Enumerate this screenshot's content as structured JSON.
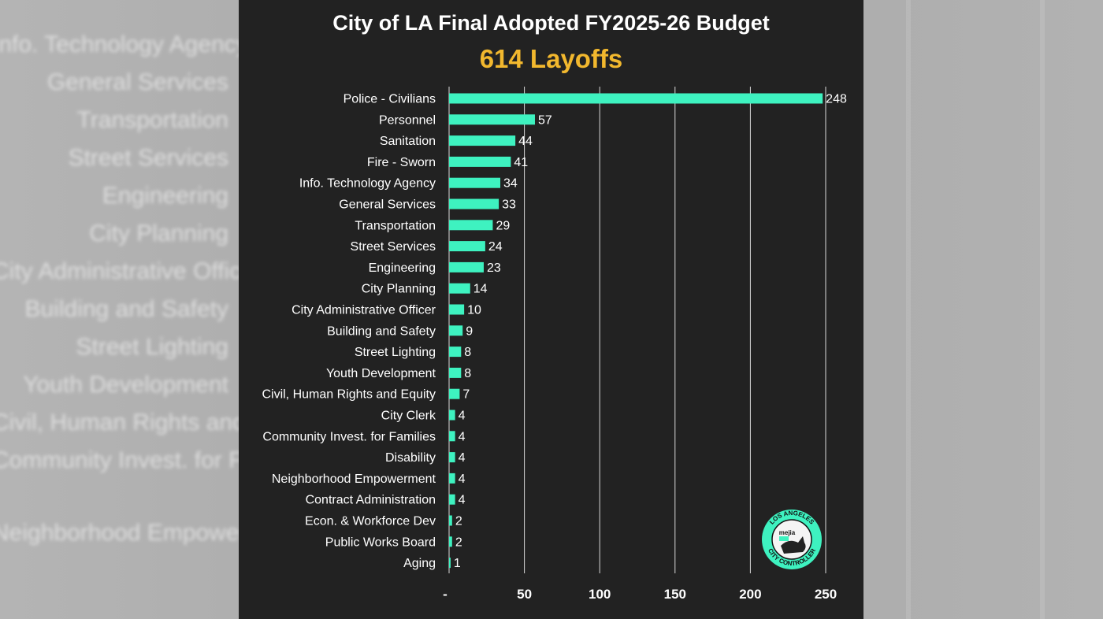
{
  "chart_data": {
    "type": "bar",
    "orientation": "horizontal",
    "title": "City of LA Final Adopted FY2025-26 Budget",
    "subtitle": "614 Layoffs",
    "categories": [
      "Police - Civilians",
      "Personnel",
      "Sanitation",
      "Fire - Sworn",
      "Info. Technology Agency",
      "General Services",
      "Transportation",
      "Street Services",
      "Engineering",
      "City Planning",
      "City Administrative Officer",
      "Building and Safety",
      "Street Lighting",
      "Youth Development",
      "Civil, Human Rights and Equity",
      "City Clerk",
      "Community Invest. for Families",
      "Disability",
      "Neighborhood Empowerment",
      "Contract Administration",
      "Econ. & Workforce Dev",
      "Public Works Board",
      "Aging"
    ],
    "values": [
      248,
      57,
      44,
      41,
      34,
      33,
      29,
      24,
      23,
      14,
      10,
      9,
      8,
      8,
      7,
      4,
      4,
      4,
      4,
      4,
      2,
      2,
      1
    ],
    "xticks": [
      "-",
      "50",
      "100",
      "150",
      "200",
      "250"
    ],
    "xlim": [
      0,
      250
    ],
    "grid": "vertical",
    "bar_color": "#3ef2c0",
    "legend": "none"
  },
  "logo": {
    "top_text": "LOS ANGELES",
    "bottom_text": "CITY CONTROLLER",
    "name": "mejia",
    "color": "#3ef2c0"
  },
  "colors": {
    "panel_bg": "#222222",
    "title": "#ffffff",
    "subtitle": "#f2b82e"
  }
}
